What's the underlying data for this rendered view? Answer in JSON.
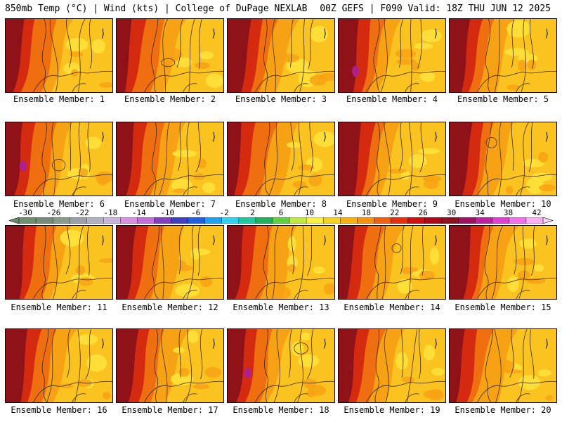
{
  "header": {
    "left": "850mb Temp (°C) | Wind (kts) | College of DuPage NEXLAB",
    "right": "00Z GEFS | F090 Valid: 18Z THU JUN 12 2025"
  },
  "panel_label_prefix": "Ensemble Member:",
  "members": [
    {
      "id": "1",
      "label": "Ensemble Member: 1"
    },
    {
      "id": "2",
      "label": "Ensemble Member: 2"
    },
    {
      "id": "3",
      "label": "Ensemble Member: 3"
    },
    {
      "id": "4",
      "label": "Ensemble Member: 4"
    },
    {
      "id": "5",
      "label": "Ensemble Member: 5"
    },
    {
      "id": "6",
      "label": "Ensemble Member: 6"
    },
    {
      "id": "7",
      "label": "Ensemble Member: 7"
    },
    {
      "id": "8",
      "label": "Ensemble Member: 8"
    },
    {
      "id": "9",
      "label": "Ensemble Member: 9"
    },
    {
      "id": "10",
      "label": "Ensemble Member: 10"
    },
    {
      "id": "11",
      "label": "Ensemble Member: 11"
    },
    {
      "id": "12",
      "label": "Ensemble Member: 12"
    },
    {
      "id": "13",
      "label": "Ensemble Member: 13"
    },
    {
      "id": "14",
      "label": "Ensemble Member: 14"
    },
    {
      "id": "15",
      "label": "Ensemble Member: 15"
    },
    {
      "id": "16",
      "label": "Ensemble Member: 16"
    },
    {
      "id": "17",
      "label": "Ensemble Member: 17"
    },
    {
      "id": "18",
      "label": "Ensemble Member: 18"
    },
    {
      "id": "19",
      "label": "Ensemble Member: 19"
    },
    {
      "id": "20",
      "label": "Ensemble Member: 20"
    }
  ],
  "colorbar": {
    "ticks": [
      "-30",
      "-26",
      "-22",
      "-18",
      "-14",
      "-10",
      "-6",
      "-2",
      "2",
      "6",
      "10",
      "14",
      "18",
      "22",
      "26",
      "30",
      "34",
      "38",
      "42"
    ],
    "colors": [
      "#6e8e6e",
      "#7a8a7a",
      "#8a9a8a",
      "#9aa0a6",
      "#b0b0c0",
      "#c8b4d8",
      "#d890e0",
      "#c070d8",
      "#8040c0",
      "#4040c0",
      "#2060e0",
      "#20a0f0",
      "#30d0f0",
      "#20c8a0",
      "#20b060",
      "#60d040",
      "#c0e840",
      "#f8f040",
      "#f8d020",
      "#f8b010",
      "#f89010",
      "#f06010",
      "#e83010",
      "#d01010",
      "#b00818",
      "#901020",
      "#a01060",
      "#c020a0",
      "#e040d0",
      "#f070e8",
      "#f8b0f0"
    ],
    "palette": {
      "dark_red": "#8e1218",
      "red": "#d42a10",
      "orange_red": "#ef6e10",
      "orange": "#f7a214",
      "gold": "#fbc320",
      "yellow": "#ffe23a",
      "magenta": "#b0208c"
    }
  }
}
